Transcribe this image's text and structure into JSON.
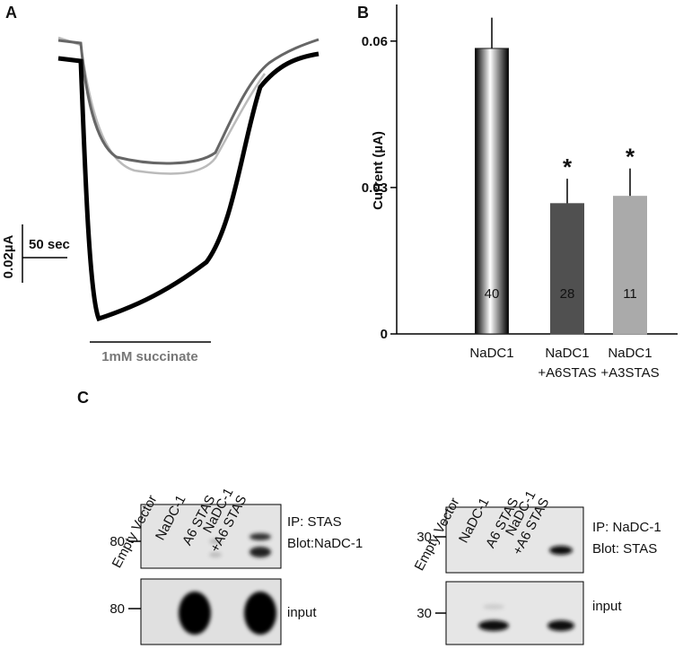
{
  "panel_labels": [
    "A",
    "B",
    "C"
  ],
  "panel_a": {
    "scale_current": "0.02µA",
    "scale_time": "50 sec",
    "stimulus": "1mM succinate"
  },
  "chart_data": {
    "type": "bar",
    "ylabel": "Current (µA)",
    "categories": [
      [
        "NaDC1"
      ],
      [
        "NaDC1",
        "+A6STAS"
      ],
      [
        "NaDC1",
        "+A3STAS"
      ]
    ],
    "values": [
      0.0585,
      0.0267,
      0.0282
    ],
    "errors": [
      0.0063,
      0.0051,
      0.0057
    ],
    "colors": [
      "#1a1a1a",
      "#505050",
      "#aaaaaa"
    ],
    "gradient": [
      true,
      false,
      false
    ],
    "n_labels": [
      "40",
      "28",
      "11"
    ],
    "significance": [
      null,
      "*",
      "*"
    ],
    "ylim": [
      0,
      0.0675
    ],
    "yticks": [
      0,
      0.03,
      0.06
    ]
  },
  "panel_c": {
    "blots": [
      {
        "lanes": [
          [
            "Empty Vector"
          ],
          [
            "NaDC-1"
          ],
          [
            "A6 STAS"
          ],
          [
            "NaDC-1",
            "+A6 STAS"
          ]
        ],
        "markers": [
          "80",
          "80"
        ],
        "labels": [
          "IP: STAS",
          "Blot:NaDC-1",
          "input"
        ]
      },
      {
        "lanes": [
          [
            "Empty Vector"
          ],
          [
            "NaDC-1"
          ],
          [
            "A6 STAS"
          ],
          [
            "NaDC-1",
            "+A6 STAS"
          ]
        ],
        "markers": [
          "30",
          "30"
        ],
        "labels": [
          "IP: NaDC-1",
          "Blot: STAS",
          "input"
        ]
      }
    ]
  }
}
